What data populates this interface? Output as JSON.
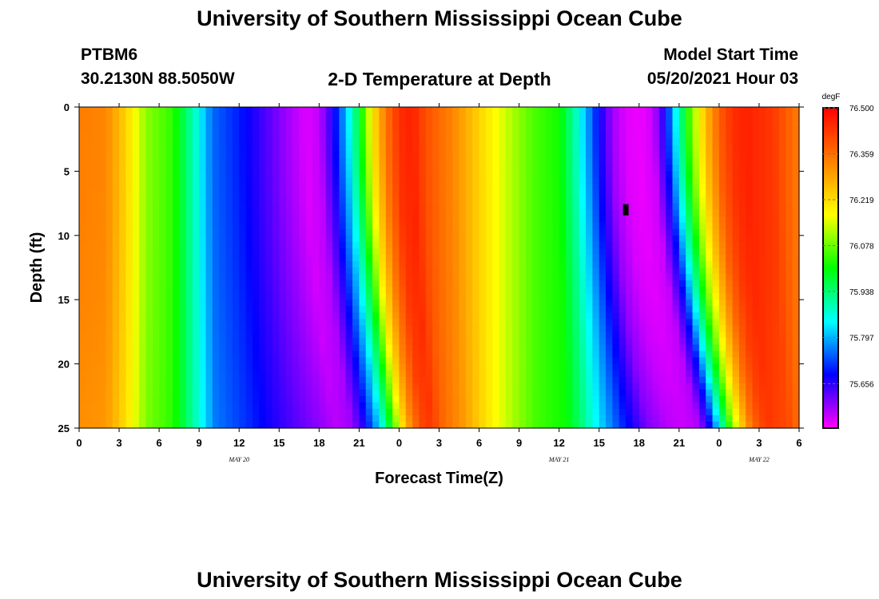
{
  "header": {
    "title_top": "University of Southern Mississippi Ocean Cube",
    "station": "PTBM6",
    "location": "30.2130N  88.5050W",
    "subtitle": "2-D Temperature at Depth",
    "model_start_label": "Model Start Time",
    "model_start_value": "05/20/2021 Hour 03",
    "title_bottom": "University of Southern Mississippi Ocean Cube"
  },
  "colors": {
    "palette": [
      "#ff00ff",
      "#0000ff",
      "#00ffff",
      "#00ff00",
      "#ffff00",
      "#ff8000",
      "#ff0000"
    ]
  },
  "chart_data": {
    "type": "heatmap",
    "title": "2-D Temperature at Depth",
    "xlabel": "Forecast Time(Z)",
    "ylabel": "Depth (ft)",
    "units": "degF",
    "x_range_hours": [
      0,
      54
    ],
    "x_ticks": [
      "0",
      "3",
      "6",
      "9",
      "12",
      "15",
      "18",
      "21",
      "0",
      "3",
      "6",
      "9",
      "12",
      "15",
      "18",
      "21",
      "0",
      "3",
      "6"
    ],
    "x_tick_hours": [
      0,
      3,
      6,
      9,
      12,
      15,
      18,
      21,
      24,
      27,
      30,
      33,
      36,
      39,
      42,
      45,
      48,
      51,
      54
    ],
    "date_labels": [
      {
        "text": "MAY 20",
        "hour": 12
      },
      {
        "text": "MAY 21",
        "hour": 36
      },
      {
        "text": "MAY 22",
        "hour": 51
      }
    ],
    "ylim": [
      0,
      25
    ],
    "y_ticks": [
      "0",
      "5",
      "10",
      "15",
      "20",
      "25"
    ],
    "y_tick_values": [
      0,
      5,
      10,
      15,
      20,
      25
    ],
    "colorbar": {
      "min": 75.52,
      "max": 76.5,
      "tick_labels": [
        "76.500",
        "76.359",
        "76.219",
        "76.078",
        "75.938",
        "75.797",
        "75.656"
      ],
      "tick_values": [
        76.5,
        76.359,
        76.219,
        76.078,
        75.938,
        75.797,
        75.656
      ]
    },
    "surface_temperature_by_hour": {
      "hours": [
        0,
        2,
        3.5,
        5,
        7,
        8.5,
        10,
        12,
        15,
        17,
        18,
        19,
        20,
        21,
        22,
        23,
        24,
        25,
        26,
        28,
        30,
        32,
        34,
        36,
        37,
        38,
        39,
        40,
        41,
        42,
        43,
        44,
        45,
        46,
        47,
        48,
        49,
        50,
        52,
        54
      ],
      "values": [
        76.34,
        76.33,
        76.23,
        76.1,
        76.04,
        75.9,
        75.75,
        75.7,
        75.6,
        75.54,
        75.56,
        75.66,
        75.8,
        75.98,
        76.2,
        76.35,
        76.44,
        76.46,
        76.4,
        76.33,
        76.23,
        76.14,
        76.06,
        76.02,
        75.92,
        75.8,
        75.68,
        75.58,
        75.54,
        75.53,
        75.55,
        75.68,
        75.9,
        76.1,
        76.26,
        76.38,
        76.44,
        76.46,
        76.43,
        76.34
      ]
    },
    "fronts": [
      {
        "surface_hour": 20,
        "hour_at_25ft": 22.5
      },
      {
        "surface_hour": 44.5,
        "hour_at_25ft": 48
      }
    ],
    "annotations": [
      {
        "type": "marker",
        "hour": 41,
        "depth_ft": 8
      }
    ]
  }
}
